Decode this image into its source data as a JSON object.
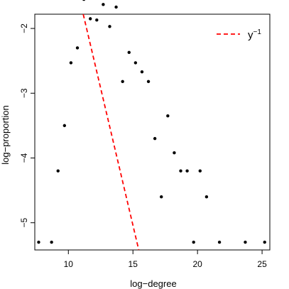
{
  "chart_data": {
    "type": "scatter",
    "title": "",
    "xlabel": "log−degree",
    "ylabel": "log−proportion",
    "xlim": [
      7.4,
      25.6
    ],
    "ylim": [
      -5.42,
      -1.78
    ],
    "xticks": [
      10,
      15,
      20,
      25
    ],
    "xtick_labels": [
      "10",
      "15",
      "20",
      "25"
    ],
    "yticks": [
      -5,
      -4,
      -3,
      -2
    ],
    "ytick_labels": [
      "−5",
      "−4",
      "−3",
      "−2"
    ],
    "grid": false,
    "legend_position": "top-right",
    "series": [
      {
        "kind": "points",
        "color": "#000000",
        "points": [
          [
            7.7,
            -5.3
          ],
          [
            8.7,
            -5.3
          ],
          [
            9.2,
            -4.2
          ],
          [
            9.7,
            -3.5
          ],
          [
            10.2,
            -2.53
          ],
          [
            10.7,
            -2.3
          ],
          [
            11.2,
            -1.55
          ],
          [
            11.7,
            -1.85
          ],
          [
            12.2,
            -1.87
          ],
          [
            12.7,
            -1.63
          ],
          [
            13.2,
            -1.97
          ],
          [
            13.7,
            -1.67
          ],
          [
            14.2,
            -2.82
          ],
          [
            14.7,
            -2.37
          ],
          [
            15.2,
            -2.53
          ],
          [
            15.7,
            -2.67
          ],
          [
            16.2,
            -2.82
          ],
          [
            16.7,
            -3.7
          ],
          [
            17.2,
            -4.6
          ],
          [
            17.7,
            -3.35
          ],
          [
            18.2,
            -3.92
          ],
          [
            18.7,
            -4.2
          ],
          [
            19.2,
            -4.2
          ],
          [
            19.7,
            -5.3
          ],
          [
            20.2,
            -4.2
          ],
          [
            20.7,
            -4.6
          ],
          [
            21.7,
            -5.3
          ],
          [
            23.7,
            -5.3
          ],
          [
            25.2,
            -5.3
          ]
        ]
      },
      {
        "name_base": "y",
        "name_exponent": "−1",
        "kind": "line",
        "color": "#ff0000",
        "dash": "dashed",
        "points": [
          [
            11.15,
            -1.78
          ],
          [
            15.45,
            -5.42
          ]
        ]
      }
    ]
  }
}
